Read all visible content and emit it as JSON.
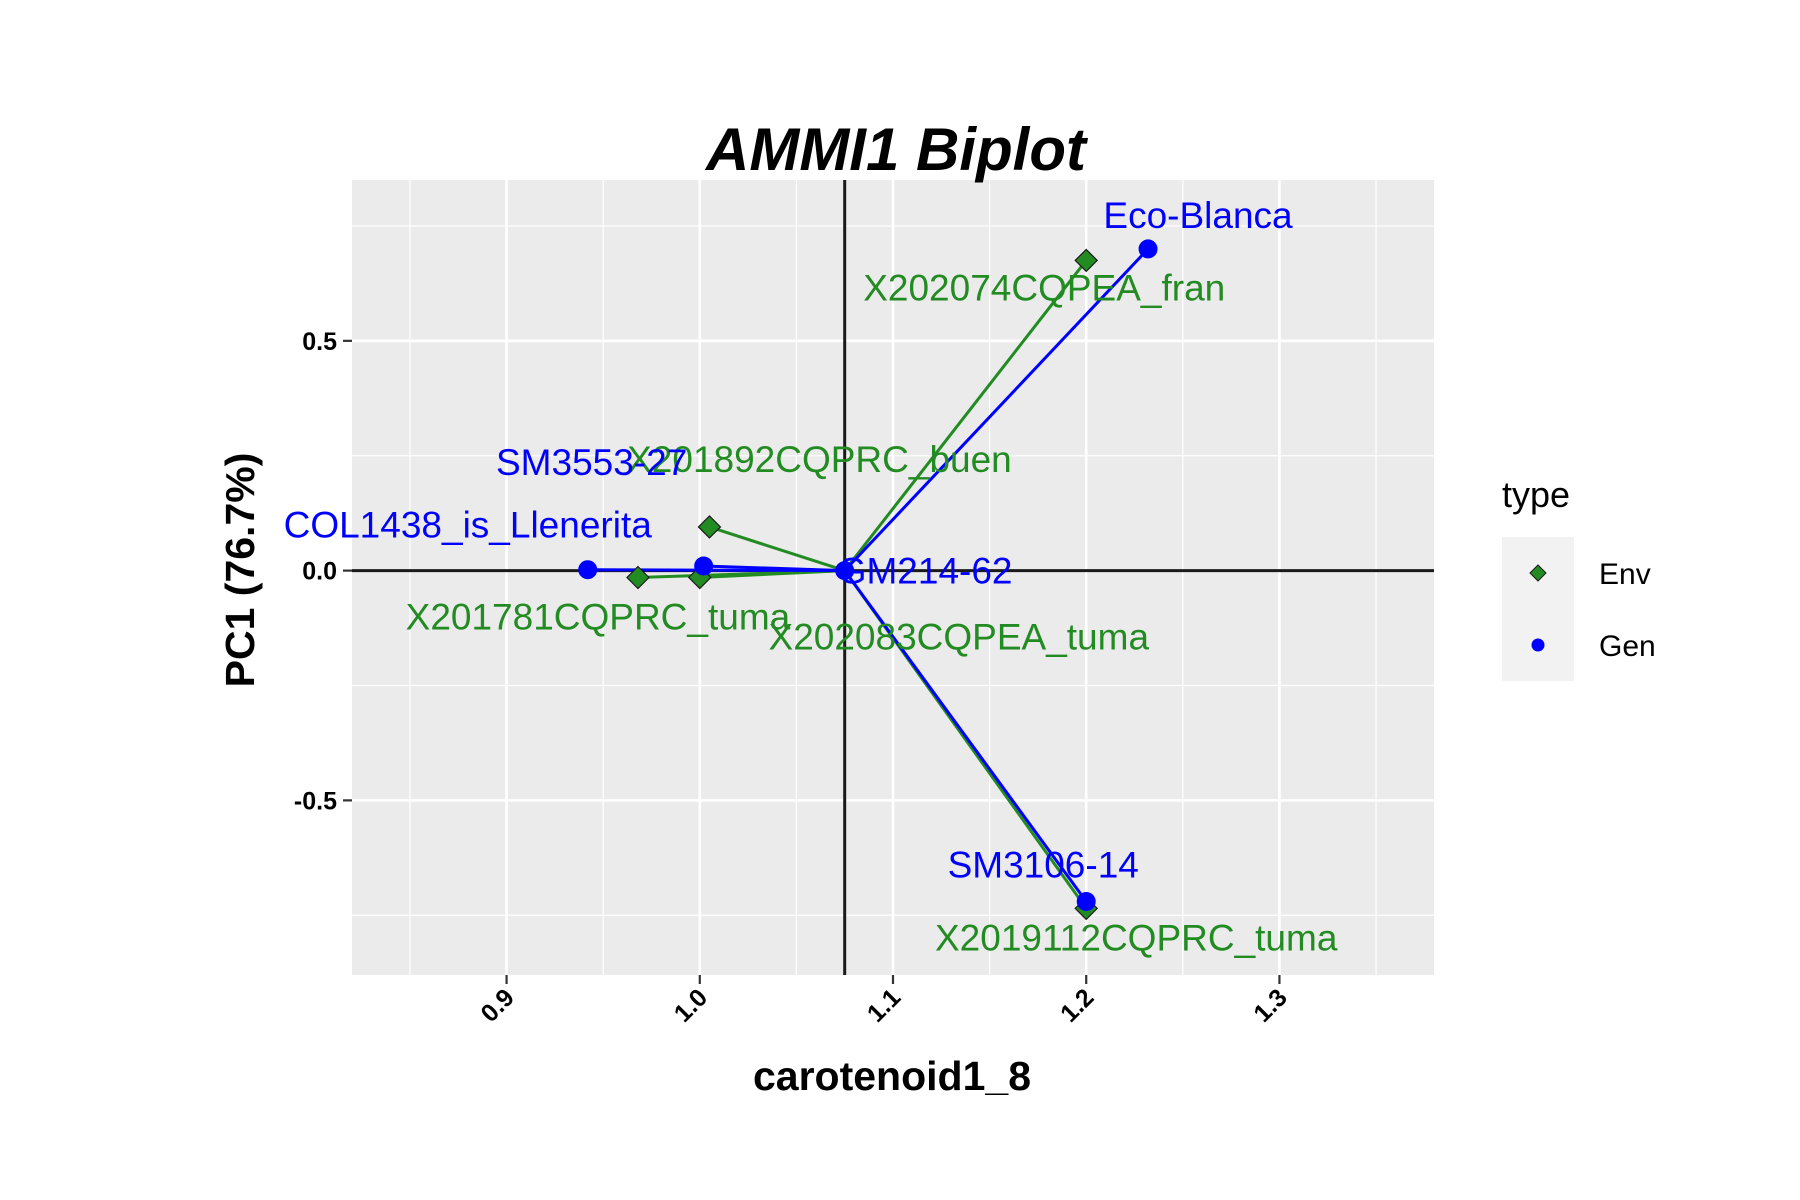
{
  "chart_data": {
    "type": "scatter",
    "title": "AMMI1 Biplot",
    "xlabel": "carotenoid1_8",
    "ylabel": "PC1 (76.7%)",
    "xlim": [
      0.82,
      1.38
    ],
    "ylim": [
      -0.88,
      0.85
    ],
    "x_ticks": [
      "0.9",
      "1.0",
      "1.1",
      "1.2",
      "1.3"
    ],
    "x_tick_values": [
      0.9,
      1.0,
      1.1,
      1.2,
      1.3
    ],
    "y_ticks": [
      "0.5",
      "0.0",
      "-0.5"
    ],
    "y_tick_values": [
      0.5,
      0.0,
      -0.5
    ],
    "grid": true,
    "origin": {
      "x": 1.075,
      "y": 0.0
    },
    "colors": {
      "Env": "#228b22",
      "Gen": "#0000ff",
      "panel": "#ebebeb",
      "grid": "#ffffff"
    },
    "legend": {
      "title": "type",
      "position": "right",
      "entries": [
        {
          "label": "Env",
          "shape": "diamond"
        },
        {
          "label": "Gen",
          "shape": "circle"
        }
      ]
    },
    "series": [
      {
        "name": "Env",
        "points": [
          {
            "label": "X202074CQPEA_fran",
            "x": 1.2,
            "y": 0.675
          },
          {
            "label": "X201892CQPRC_buen",
            "x": 1.005,
            "y": 0.095
          },
          {
            "label": "X201781CQPRC_tuma",
            "x": 0.968,
            "y": -0.015
          },
          {
            "label": "X202083CQPEA_tuma",
            "x": 1.0,
            "y": -0.015
          },
          {
            "label": "X2019112CQPRC_tuma",
            "x": 1.2,
            "y": -0.735
          }
        ]
      },
      {
        "name": "Gen",
        "points": [
          {
            "label": "Eco-Blanca",
            "x": 1.232,
            "y": 0.7
          },
          {
            "label": "SM3553-27",
            "x": 1.002,
            "y": 0.01
          },
          {
            "label": "COL1438_is_Llenerita",
            "x": 0.942,
            "y": 0.002
          },
          {
            "label": "GM214-62",
            "x": 1.075,
            "y": 0.0
          },
          {
            "label": "SM3106-14",
            "x": 1.2,
            "y": -0.72
          }
        ]
      }
    ]
  }
}
